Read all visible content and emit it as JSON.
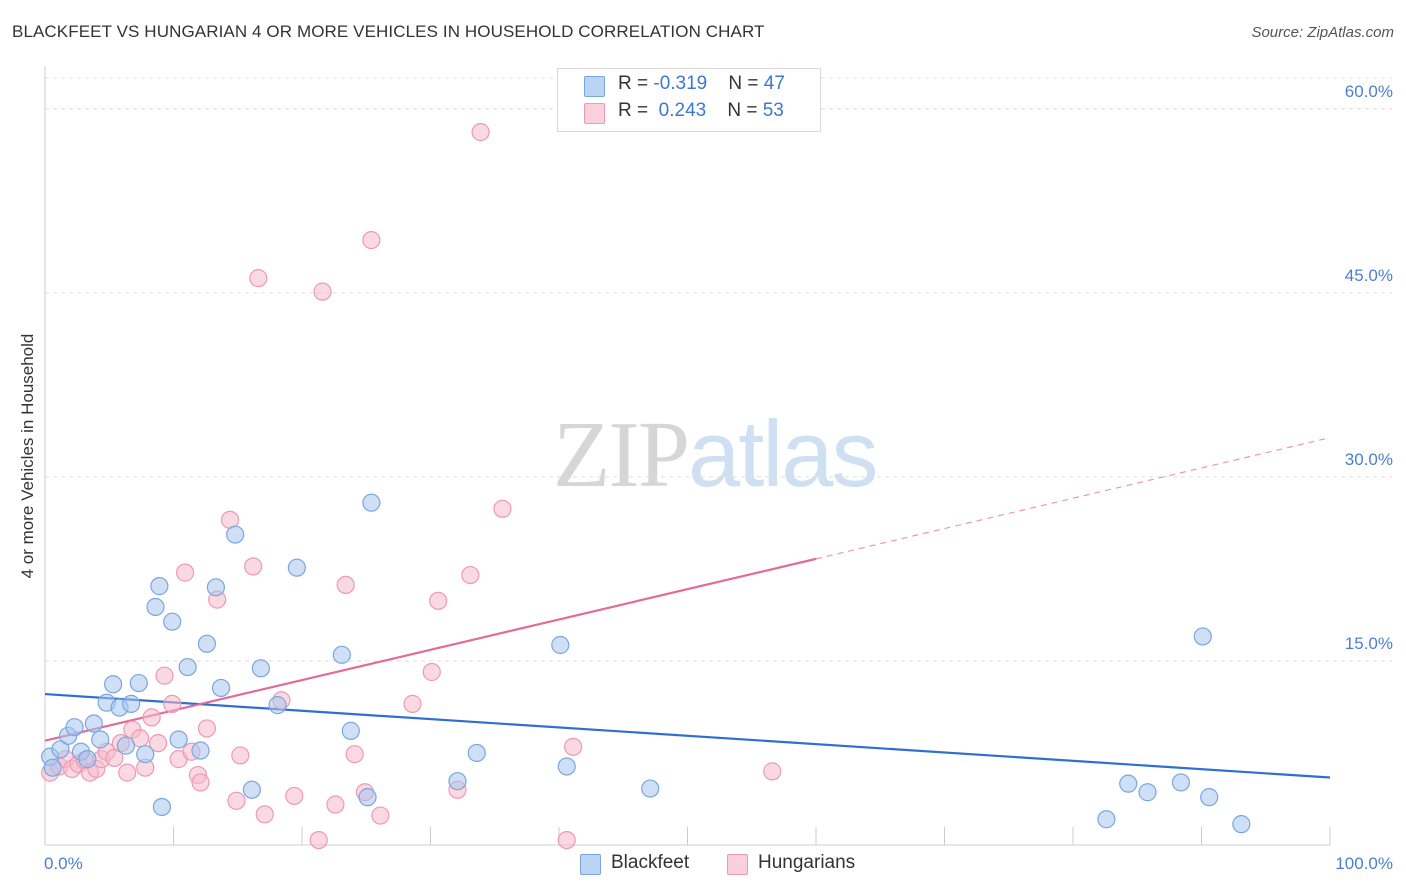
{
  "title": "BLACKFEET VS HUNGARIAN 4 OR MORE VEHICLES IN HOUSEHOLD CORRELATION CHART",
  "source": "Source: ZipAtlas.com",
  "watermark": {
    "zip": "ZIP",
    "atlas": "atlas"
  },
  "legend": {
    "rows": [
      {
        "r_label": "R = ",
        "r_value": "-0.319",
        "n_label": "N = ",
        "n_value": "47",
        "color": "#a8c6ee"
      },
      {
        "r_label": "R = ",
        "r_value": "0.243",
        "n_label": "N = ",
        "n_value": "53",
        "color": "#f7b9cc"
      }
    ]
  },
  "bottom_legend": [
    {
      "label": "Blackfeet",
      "color": "#a8c6ee"
    },
    {
      "label": "Hungarians",
      "color": "#f7b9cc"
    }
  ],
  "chart_data": {
    "type": "scatter",
    "title": "BLACKFEET VS HUNGARIAN 4 OR MORE VEHICLES IN HOUSEHOLD CORRELATION CHART",
    "xlabel": "",
    "ylabel": "4 or more Vehicles in Household",
    "xlim": [
      0,
      100
    ],
    "ylim": [
      0,
      63
    ],
    "x_tick_labels": [
      {
        "value": 0,
        "label": "0.0%"
      },
      {
        "value": 100,
        "label": "100.0%"
      }
    ],
    "y_tick_labels": [
      {
        "value": 15,
        "label": "15.0%"
      },
      {
        "value": 30,
        "label": "30.0%"
      },
      {
        "value": 45,
        "label": "45.0%"
      },
      {
        "value": 60,
        "label": "60.0%"
      }
    ],
    "grid": true,
    "legend_position": "top-center",
    "series": [
      {
        "name": "Blackfeet",
        "color": "#a8c6ee",
        "stroke": "#7aa6df",
        "trend_color": "#2e6fcf",
        "trend": {
          "x0": 0,
          "y0": 12.3,
          "x1": 100,
          "y1": 5.5,
          "dashed_from": null
        },
        "points": [
          [
            0.4,
            7.2
          ],
          [
            1.2,
            7.8
          ],
          [
            1.8,
            8.9
          ],
          [
            2.3,
            9.6
          ],
          [
            2.8,
            7.6
          ],
          [
            3.3,
            7.0
          ],
          [
            3.8,
            9.9
          ],
          [
            4.3,
            8.6
          ],
          [
            4.8,
            11.6
          ],
          [
            5.3,
            13.1
          ],
          [
            5.8,
            11.2
          ],
          [
            6.3,
            8.1
          ],
          [
            6.7,
            11.5
          ],
          [
            7.3,
            13.2
          ],
          [
            7.8,
            7.4
          ],
          [
            8.6,
            19.4
          ],
          [
            8.9,
            21.1
          ],
          [
            9.1,
            3.1
          ],
          [
            9.9,
            18.2
          ],
          [
            10.4,
            8.6
          ],
          [
            11.1,
            14.5
          ],
          [
            12.1,
            7.7
          ],
          [
            12.6,
            16.4
          ],
          [
            13.3,
            21.0
          ],
          [
            13.7,
            12.8
          ],
          [
            14.8,
            25.3
          ],
          [
            16.1,
            4.5
          ],
          [
            16.8,
            14.4
          ],
          [
            18.1,
            11.4
          ],
          [
            19.6,
            22.6
          ],
          [
            23.1,
            15.5
          ],
          [
            23.8,
            9.3
          ],
          [
            25.1,
            3.9
          ],
          [
            25.4,
            27.9
          ],
          [
            32.1,
            5.2
          ],
          [
            33.6,
            7.5
          ],
          [
            40.1,
            16.3
          ],
          [
            40.6,
            6.4
          ],
          [
            47.1,
            4.6
          ],
          [
            82.6,
            2.1
          ],
          [
            84.3,
            5.0
          ],
          [
            85.8,
            4.3
          ],
          [
            88.4,
            5.1
          ],
          [
            90.1,
            17.0
          ],
          [
            90.6,
            3.9
          ],
          [
            93.1,
            1.7
          ],
          [
            0.6,
            6.3
          ]
        ]
      },
      {
        "name": "Hungarians",
        "color": "#f7b9cc",
        "stroke": "#ec9ab4",
        "trend_color": "#e36b97",
        "trend": {
          "x0": 0,
          "y0": 8.5,
          "x1": 100,
          "y1": 33.2,
          "dashed_from": 60
        },
        "points": [
          [
            0.4,
            5.9
          ],
          [
            1.1,
            6.4
          ],
          [
            1.6,
            7.0
          ],
          [
            2.1,
            6.2
          ],
          [
            2.6,
            6.6
          ],
          [
            3.1,
            6.9
          ],
          [
            3.5,
            5.9
          ],
          [
            4.0,
            6.2
          ],
          [
            4.4,
            7.0
          ],
          [
            4.8,
            7.6
          ],
          [
            5.4,
            7.1
          ],
          [
            5.9,
            8.3
          ],
          [
            6.4,
            5.9
          ],
          [
            6.8,
            9.4
          ],
          [
            7.4,
            8.7
          ],
          [
            7.8,
            6.3
          ],
          [
            8.3,
            10.4
          ],
          [
            8.8,
            8.3
          ],
          [
            9.3,
            13.8
          ],
          [
            9.9,
            11.5
          ],
          [
            10.4,
            7.0
          ],
          [
            10.9,
            22.2
          ],
          [
            11.4,
            7.6
          ],
          [
            11.9,
            5.7
          ],
          [
            12.1,
            5.1
          ],
          [
            12.6,
            9.5
          ],
          [
            13.4,
            20.0
          ],
          [
            14.4,
            26.5
          ],
          [
            14.9,
            3.6
          ],
          [
            15.2,
            7.3
          ],
          [
            16.2,
            22.7
          ],
          [
            16.6,
            46.2
          ],
          [
            17.1,
            2.5
          ],
          [
            18.4,
            11.8
          ],
          [
            19.4,
            4.0
          ],
          [
            21.3,
            0.4
          ],
          [
            21.6,
            45.1
          ],
          [
            22.6,
            3.3
          ],
          [
            23.4,
            21.2
          ],
          [
            24.1,
            7.4
          ],
          [
            24.9,
            4.3
          ],
          [
            25.4,
            49.3
          ],
          [
            26.1,
            2.4
          ],
          [
            28.6,
            11.5
          ],
          [
            30.1,
            14.1
          ],
          [
            30.6,
            19.9
          ],
          [
            32.1,
            4.5
          ],
          [
            33.1,
            22.0
          ],
          [
            33.9,
            58.1
          ],
          [
            35.6,
            27.4
          ],
          [
            40.6,
            0.4
          ],
          [
            41.1,
            8.0
          ],
          [
            56.6,
            6.0
          ]
        ]
      }
    ]
  }
}
